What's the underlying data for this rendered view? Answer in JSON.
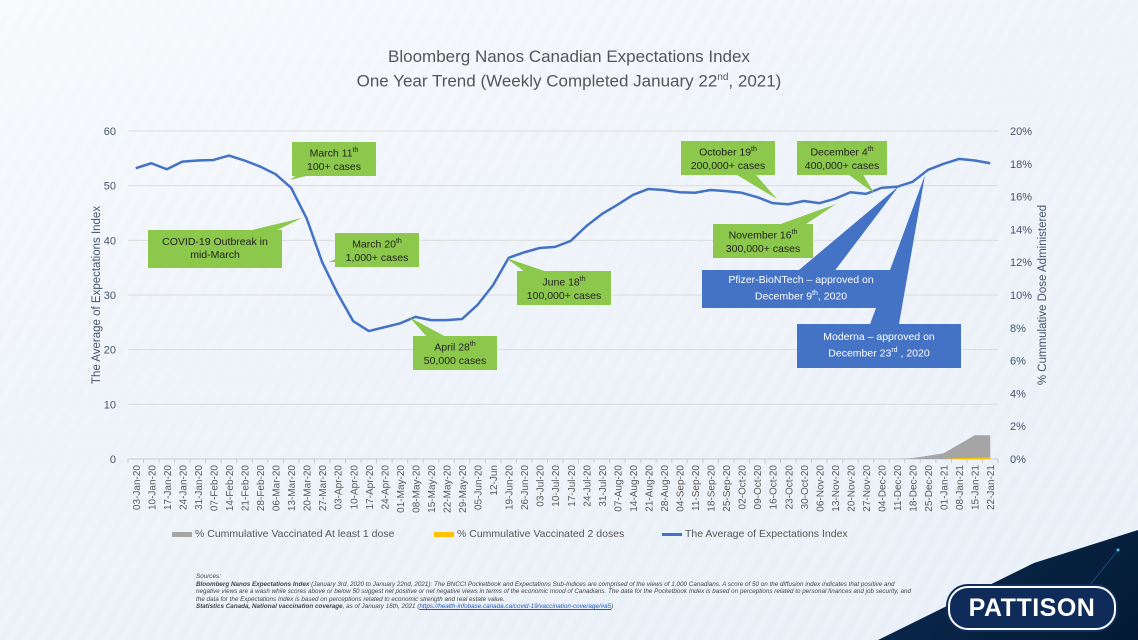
{
  "title": {
    "line1": "Bloomberg Nanos Canadian Expectations Index",
    "line2_pre": "One Year Trend (Weekly Completed January 22",
    "line2_sup": "nd",
    "line2_post": ", 2021)"
  },
  "chart_data": {
    "type": "line",
    "title": "Bloomberg Nanos Canadian Expectations Index — One Year Trend (Weekly Completed January 22nd, 2021)",
    "categories": [
      "03-Jan-20",
      "10-Jan-20",
      "17-Jan-20",
      "24-Jan-20",
      "31-Jan-20",
      "07-Feb-20",
      "14-Feb-20",
      "21-Feb-20",
      "28-Feb-20",
      "06-Mar-20",
      "13-Mar-20",
      "20-Mar-20",
      "27-Mar-20",
      "03-Apr-20",
      "10-Apr-20",
      "17-Apr-20",
      "24-Apr-20",
      "01-May-20",
      "08-May-20",
      "15-May-20",
      "22-May-20",
      "29-May-20",
      "05-Jun-20",
      "12-Jun",
      "19-Jun-20",
      "26-Jun-20",
      "03-Jul-20",
      "10-Jul-20",
      "17-Jul-20",
      "24-Jul-20",
      "31-Jul-20",
      "07-Aug-20",
      "14-Aug-20",
      "21-Aug-20",
      "28-Aug-20",
      "04-Sep-20",
      "11-Sep-20",
      "18-Sep-20",
      "25-Sep-20",
      "02-Oct-20",
      "09-Oct-20",
      "16-Oct-20",
      "23-Oct-20",
      "30-Oct-20",
      "06-Nov-20",
      "13-Nov-20",
      "20-Nov-20",
      "27-Nov-20",
      "04-Dec-20",
      "11-Dec-20",
      "18-Dec-20",
      "25-Dec-20",
      "01-Jan-21",
      "08-Jan-21",
      "15-Jan-21",
      "22-Jan-21"
    ],
    "series": [
      {
        "name": "The Average of Expectations Index",
        "axis": "left",
        "kind": "line",
        "color": "#4472c4",
        "values": [
          53.2,
          54.1,
          53.0,
          54.4,
          54.6,
          54.7,
          55.5,
          54.6,
          53.5,
          52.1,
          49.6,
          44.0,
          36.0,
          30.2,
          25.2,
          23.4,
          24.1,
          24.8,
          26.0,
          25.4,
          25.4,
          25.6,
          28.2,
          31.8,
          36.8,
          37.8,
          38.6,
          38.8,
          39.9,
          42.6,
          44.8,
          46.5,
          48.3,
          49.4,
          49.2,
          48.8,
          48.7,
          49.2,
          49.0,
          48.7,
          47.9,
          46.8,
          46.6,
          47.2,
          46.8,
          47.6,
          48.8,
          48.5,
          49.6,
          49.8,
          50.7,
          52.9,
          54.0,
          54.9,
          54.6,
          54.1
        ]
      },
      {
        "name": "% Cummulative Vaccinated At least 1 dose",
        "axis": "right",
        "kind": "area",
        "color": "#a5a5a5",
        "values": [
          0,
          0,
          0,
          0,
          0,
          0,
          0,
          0,
          0,
          0,
          0,
          0,
          0,
          0,
          0,
          0,
          0,
          0,
          0,
          0,
          0,
          0,
          0,
          0,
          0,
          0,
          0,
          0,
          0,
          0,
          0,
          0,
          0,
          0,
          0,
          0,
          0,
          0,
          0,
          0,
          0,
          0,
          0,
          0,
          0,
          0,
          0,
          0,
          0,
          0,
          0.05,
          0.2,
          0.35,
          0.9,
          1.45,
          1.45
        ]
      },
      {
        "name": "% Cummulative Vaccinated 2 doses",
        "axis": "right",
        "kind": "area",
        "color": "#ffc000",
        "values": [
          0,
          0,
          0,
          0,
          0,
          0,
          0,
          0,
          0,
          0,
          0,
          0,
          0,
          0,
          0,
          0,
          0,
          0,
          0,
          0,
          0,
          0,
          0,
          0,
          0,
          0,
          0,
          0,
          0,
          0,
          0,
          0,
          0,
          0,
          0,
          0,
          0,
          0,
          0,
          0,
          0,
          0,
          0,
          0,
          0,
          0,
          0,
          0,
          0,
          0,
          0,
          0,
          0,
          0.05,
          0.08,
          0.1
        ]
      }
    ],
    "ylabel": "The Average of Expectations Index",
    "y2label": "% Cummulative Dose Administered",
    "ylim": [
      0,
      60
    ],
    "y2lim": [
      0,
      20
    ],
    "yticks": [
      "0",
      "10",
      "20",
      "30",
      "40",
      "50",
      "60"
    ],
    "y2ticks": [
      "0%",
      "2%",
      "4%",
      "6%",
      "8%",
      "10%",
      "12%",
      "14%",
      "16%",
      "18%",
      "20%"
    ],
    "grid": true,
    "legend": "bottom",
    "legend_entries": [
      "% Cummulative Vaccinated At least 1 dose",
      "% Cummulative Vaccinated 2 doses",
      "The Average of Expectations Index"
    ],
    "annotations": [
      {
        "id": "covid-outbreak",
        "lines": [
          "COVID-19 Outbreak in",
          "mid-March"
        ],
        "color": "green",
        "target": "13-Mar-20"
      },
      {
        "id": "march-11",
        "lines": [
          "March 11|th",
          "100+ cases"
        ],
        "color": "green",
        "target": "06-Mar-20"
      },
      {
        "id": "march-20",
        "lines": [
          "March 20|th",
          "1,000+ cases"
        ],
        "color": "green",
        "target": "27-Mar-20"
      },
      {
        "id": "april-28",
        "lines": [
          "April 28|th",
          "50,000 cases"
        ],
        "color": "green",
        "target": "24-Apr-20"
      },
      {
        "id": "june-18",
        "lines": [
          "June 18|th",
          "100,000+ cases"
        ],
        "color": "green",
        "target": "19-Jun-20"
      },
      {
        "id": "october-19",
        "lines": [
          "October 19|th",
          "200,000+ cases"
        ],
        "color": "green",
        "target": "16-Oct-20"
      },
      {
        "id": "november-16",
        "lines": [
          "November 16|th",
          "300,000+ cases"
        ],
        "color": "green",
        "target": "13-Nov-20"
      },
      {
        "id": "december-4",
        "lines": [
          "December 4|th",
          "400,000+ cases"
        ],
        "color": "green",
        "target": "04-Dec-20"
      },
      {
        "id": "pfizer",
        "lines": [
          "Pfizer-BioNTech  – approved on",
          "December 9|th|, 2020"
        ],
        "color": "blue",
        "target": "11-Dec-20"
      },
      {
        "id": "moderna",
        "lines": [
          "Moderna – approved on",
          "December 23|rd| , 2020"
        ],
        "color": "blue",
        "target": "25-Dec-20"
      }
    ]
  },
  "sources": {
    "heading": "Sources:",
    "bnei_bold": "Bloomberg Nanos Expectations Index",
    "bnei_text": " (January 3rd, 2020 to January 22nd, 2021): The BNCCI Pocketbook and Expectations Sub-Indices are comprised of the views of 1,000 Canadians. A score of 50 on the diffusion index indicates that positive and negative views are a wash while scores above or below 50 suggest net positive or net negative views in terms of the economic mood of Canadians. The data for the Pocketbook Index is based on perceptions related to personal finances and job security, and the data for the Expectations Index is based on perceptions related to economic strength and real estate value.",
    "statcan_bold": "Statistics Canada, National vaccination coverage",
    "statcan_text": ", as of January 16th, 2021 (",
    "statcan_link": "https://health-infobase.canada.ca/covid-19/vaccination-coverage/#a5",
    "statcan_close": ")"
  },
  "logo": {
    "text": "PATTISON"
  }
}
